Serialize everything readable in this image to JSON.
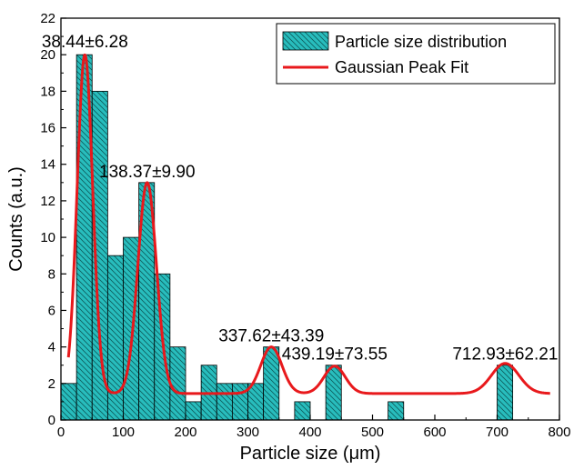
{
  "chart_data": {
    "type": "bar",
    "xlabel": "Particle size (μm)",
    "ylabel": "Counts (a.u.)",
    "xlim": [
      0,
      800
    ],
    "ylim": [
      0,
      22
    ],
    "x_ticks": [
      "0",
      "100",
      "200",
      "300",
      "400",
      "500",
      "600",
      "700",
      "800"
    ],
    "y_ticks": [
      "0",
      "2",
      "4",
      "6",
      "8",
      "10",
      "12",
      "14",
      "16",
      "18",
      "20",
      "22"
    ],
    "grid": false,
    "legend_position": "top-right",
    "series": [
      {
        "name": "Particle size distribution",
        "kind": "histogram",
        "color": "#28BDBD",
        "hatch": "diagonal",
        "bin_width": 25,
        "bins": [
          {
            "x": 12.5,
            "count": 2
          },
          {
            "x": 37.5,
            "count": 20
          },
          {
            "x": 62.5,
            "count": 18
          },
          {
            "x": 87.5,
            "count": 9
          },
          {
            "x": 112.5,
            "count": 10
          },
          {
            "x": 137.5,
            "count": 13
          },
          {
            "x": 162.5,
            "count": 8
          },
          {
            "x": 187.5,
            "count": 4
          },
          {
            "x": 212.5,
            "count": 1
          },
          {
            "x": 237.5,
            "count": 3
          },
          {
            "x": 262.5,
            "count": 2
          },
          {
            "x": 287.5,
            "count": 2
          },
          {
            "x": 312.5,
            "count": 2
          },
          {
            "x": 337.5,
            "count": 4
          },
          {
            "x": 387.5,
            "count": 1
          },
          {
            "x": 437.5,
            "count": 3
          },
          {
            "x": 537.5,
            "count": 1
          },
          {
            "x": 712.5,
            "count": 3
          }
        ]
      },
      {
        "name": "Gaussian Peak Fit",
        "kind": "line",
        "color": "#E8191C",
        "baseline": 1.45,
        "x_range": [
          12,
          785
        ],
        "peaks": [
          {
            "center": 38.44,
            "height": 18.55,
            "width": 12.5
          },
          {
            "center": 138.37,
            "height": 11.55,
            "width": 15.0
          },
          {
            "center": 337.62,
            "height": 2.55,
            "width": 17.0
          },
          {
            "center": 439.19,
            "height": 1.5,
            "width": 17.0
          },
          {
            "center": 712.93,
            "height": 1.65,
            "width": 22.0
          }
        ]
      }
    ],
    "annotations": [
      {
        "text": "38.44±6.28",
        "x": 38.44,
        "y": 20.4
      },
      {
        "text": "138.37±9.90",
        "x": 138.37,
        "y": 13.3
      },
      {
        "text": "337.62±43.39",
        "x": 337.62,
        "y": 4.3
      },
      {
        "text": "439.19±73.55",
        "x": 439.19,
        "y": 3.3
      },
      {
        "text": "712.93±62.21",
        "x": 712.93,
        "y": 3.3
      }
    ]
  }
}
